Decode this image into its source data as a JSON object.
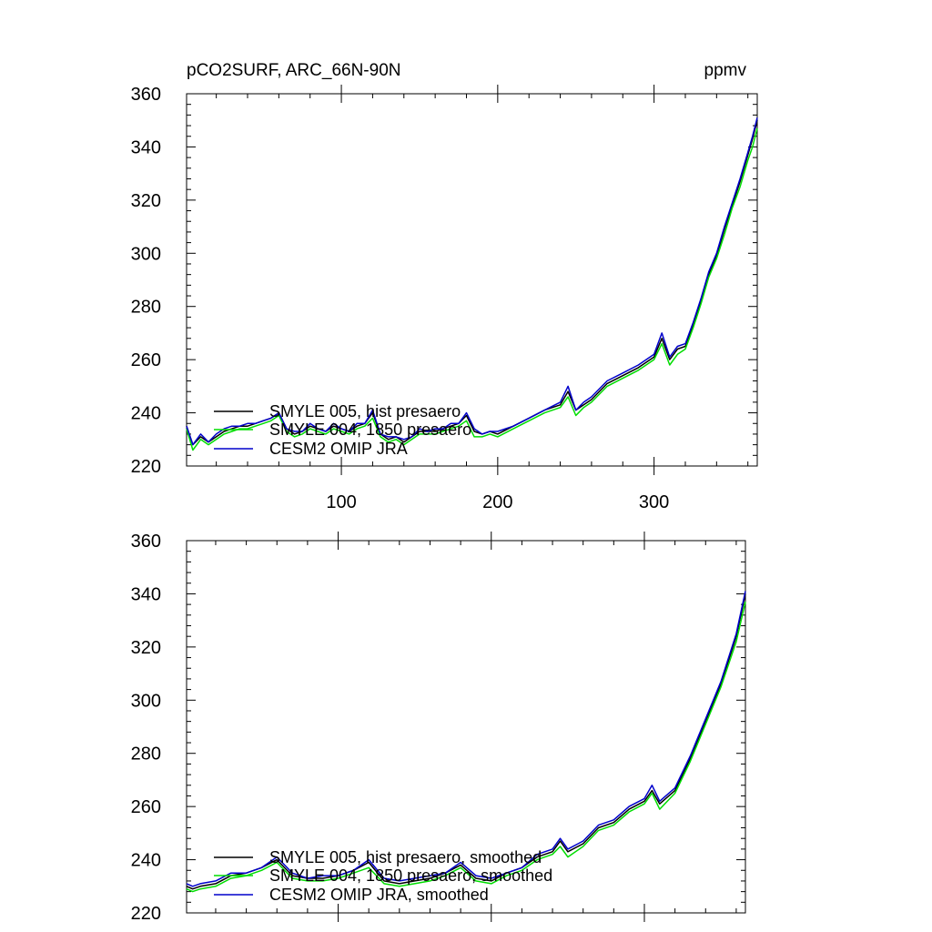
{
  "chart_data": [
    {
      "type": "line",
      "title": "pCO2SURF, ARC_66N-90N",
      "units": "ppmv",
      "xlim": [
        1,
        366
      ],
      "ylim": [
        220,
        360
      ],
      "x_ticks": [
        100,
        200,
        300
      ],
      "x_tick_labels": [
        "100",
        "200",
        "300"
      ],
      "y_ticks": [
        220,
        240,
        260,
        280,
        300,
        320,
        340,
        360
      ],
      "y_tick_labels": [
        "220",
        "240",
        "260",
        "280",
        "300",
        "320",
        "340",
        "360"
      ],
      "legend_position": "bottom-left",
      "series": [
        {
          "name": "SMYLE 005, hist presaero",
          "color": "#000000",
          "x": [
            1,
            5,
            10,
            15,
            20,
            25,
            30,
            35,
            40,
            45,
            50,
            55,
            60,
            65,
            70,
            75,
            80,
            85,
            90,
            95,
            100,
            105,
            110,
            115,
            120,
            125,
            130,
            135,
            140,
            145,
            150,
            155,
            160,
            165,
            170,
            175,
            180,
            185,
            190,
            195,
            200,
            210,
            220,
            230,
            240,
            245,
            250,
            255,
            260,
            270,
            280,
            290,
            300,
            305,
            310,
            315,
            320,
            325,
            330,
            335,
            340,
            345,
            350,
            355,
            360,
            363,
            366
          ],
          "y": [
            235,
            228,
            231,
            229,
            231,
            233,
            234,
            235,
            235,
            236,
            237,
            238,
            240,
            234,
            232,
            233,
            235,
            234,
            233,
            235,
            234,
            233,
            235,
            236,
            240,
            232,
            230,
            231,
            229,
            231,
            233,
            233,
            233,
            234,
            235,
            236,
            239,
            233,
            232,
            233,
            232,
            235,
            238,
            241,
            243,
            248,
            241,
            243,
            245,
            251,
            254,
            257,
            261,
            268,
            260,
            264,
            265,
            273,
            282,
            292,
            299,
            309,
            318,
            327,
            337,
            343,
            350
          ]
        },
        {
          "name": "SMYLE 004, 1850 presaero",
          "color": "#00dd00",
          "x": [
            1,
            5,
            10,
            15,
            20,
            25,
            30,
            35,
            40,
            45,
            50,
            55,
            60,
            65,
            70,
            75,
            80,
            85,
            90,
            95,
            100,
            105,
            110,
            115,
            120,
            125,
            130,
            135,
            140,
            145,
            150,
            155,
            160,
            165,
            170,
            175,
            180,
            185,
            190,
            195,
            200,
            210,
            220,
            230,
            240,
            245,
            250,
            255,
            260,
            270,
            280,
            290,
            300,
            305,
            310,
            315,
            320,
            325,
            330,
            335,
            340,
            345,
            350,
            355,
            360,
            363,
            366
          ],
          "y": [
            234,
            226,
            230,
            228,
            230,
            232,
            233,
            234,
            234,
            235,
            236,
            237,
            239,
            233,
            231,
            232,
            234,
            233,
            232,
            234,
            233,
            232,
            234,
            235,
            238,
            231,
            229,
            230,
            228,
            230,
            232,
            232,
            232,
            233,
            234,
            235,
            237,
            231,
            231,
            232,
            231,
            234,
            237,
            240,
            242,
            246,
            239,
            242,
            244,
            250,
            253,
            256,
            260,
            266,
            258,
            262,
            264,
            272,
            281,
            291,
            298,
            307,
            317,
            325,
            335,
            340,
            347
          ]
        },
        {
          "name": "CESM2 OMIP JRA",
          "color": "#0000cc",
          "x": [
            1,
            5,
            10,
            15,
            20,
            25,
            30,
            35,
            40,
            45,
            50,
            55,
            60,
            65,
            70,
            75,
            80,
            85,
            90,
            95,
            100,
            105,
            110,
            115,
            120,
            125,
            130,
            135,
            140,
            145,
            150,
            155,
            160,
            165,
            170,
            175,
            180,
            185,
            190,
            195,
            200,
            210,
            220,
            230,
            240,
            245,
            250,
            255,
            260,
            270,
            280,
            290,
            300,
            305,
            310,
            315,
            320,
            325,
            330,
            335,
            340,
            345,
            350,
            355,
            360,
            363,
            366
          ],
          "y": [
            235,
            228,
            232,
            229,
            232,
            234,
            235,
            235,
            236,
            236,
            237,
            238,
            240,
            234,
            233,
            233,
            236,
            234,
            233,
            236,
            234,
            233,
            236,
            236,
            241,
            232,
            231,
            231,
            230,
            231,
            234,
            233,
            234,
            234,
            236,
            236,
            240,
            234,
            232,
            233,
            233,
            235,
            238,
            241,
            244,
            250,
            241,
            244,
            246,
            252,
            255,
            258,
            262,
            270,
            261,
            265,
            266,
            274,
            283,
            293,
            300,
            310,
            319,
            328,
            338,
            344,
            351
          ]
        }
      ]
    },
    {
      "type": "line",
      "xlim": [
        1,
        366
      ],
      "ylim": [
        220,
        360
      ],
      "y_ticks": [
        220,
        240,
        260,
        280,
        300,
        320,
        340,
        360
      ],
      "y_tick_labels": [
        "220",
        "240",
        "260",
        "280",
        "300",
        "320",
        "340",
        "360"
      ],
      "x_ticks": [
        100,
        200,
        300
      ],
      "legend_position": "bottom-left",
      "series": [
        {
          "name": "SMYLE 005, hist presaero, smoothed",
          "color": "#000000",
          "x": [
            1,
            5,
            10,
            20,
            30,
            40,
            50,
            60,
            70,
            80,
            90,
            100,
            110,
            120,
            130,
            140,
            150,
            160,
            170,
            180,
            190,
            200,
            210,
            220,
            230,
            240,
            245,
            250,
            260,
            270,
            280,
            290,
            300,
            305,
            310,
            320,
            330,
            340,
            350,
            360,
            366
          ],
          "y": [
            230,
            229,
            230,
            231,
            234,
            235,
            237,
            240,
            234,
            233,
            233,
            234,
            236,
            239,
            232,
            231,
            232,
            233,
            235,
            238,
            233,
            232,
            235,
            237,
            241,
            243,
            247,
            243,
            246,
            252,
            254,
            259,
            262,
            266,
            261,
            266,
            278,
            292,
            306,
            324,
            340
          ]
        },
        {
          "name": "SMYLE 004, 1850 presaero, smoothed",
          "color": "#00dd00",
          "x": [
            1,
            5,
            10,
            20,
            30,
            40,
            50,
            60,
            70,
            80,
            90,
            100,
            110,
            120,
            130,
            140,
            150,
            160,
            170,
            180,
            190,
            200,
            210,
            220,
            230,
            240,
            245,
            250,
            260,
            270,
            280,
            290,
            300,
            305,
            310,
            320,
            330,
            340,
            350,
            360,
            366
          ],
          "y": [
            229,
            228,
            229,
            230,
            233,
            234,
            236,
            239,
            233,
            232,
            232,
            233,
            235,
            237,
            231,
            230,
            231,
            232,
            234,
            237,
            232,
            231,
            234,
            236,
            240,
            242,
            245,
            241,
            245,
            251,
            253,
            258,
            261,
            265,
            259,
            265,
            277,
            291,
            305,
            322,
            337
          ]
        },
        {
          "name": "CESM2 OMIP JRA, smoothed",
          "color": "#0000cc",
          "x": [
            1,
            5,
            10,
            20,
            30,
            40,
            50,
            60,
            70,
            80,
            90,
            100,
            110,
            120,
            130,
            140,
            150,
            160,
            170,
            180,
            190,
            200,
            210,
            220,
            230,
            240,
            245,
            250,
            260,
            270,
            280,
            290,
            300,
            305,
            310,
            320,
            330,
            340,
            350,
            360,
            366
          ],
          "y": [
            231,
            230,
            231,
            232,
            235,
            235,
            237,
            241,
            235,
            233,
            234,
            234,
            236,
            240,
            233,
            232,
            233,
            234,
            235,
            239,
            234,
            233,
            235,
            237,
            242,
            244,
            248,
            244,
            247,
            253,
            255,
            260,
            263,
            268,
            262,
            267,
            279,
            293,
            307,
            325,
            341
          ]
        }
      ]
    }
  ]
}
